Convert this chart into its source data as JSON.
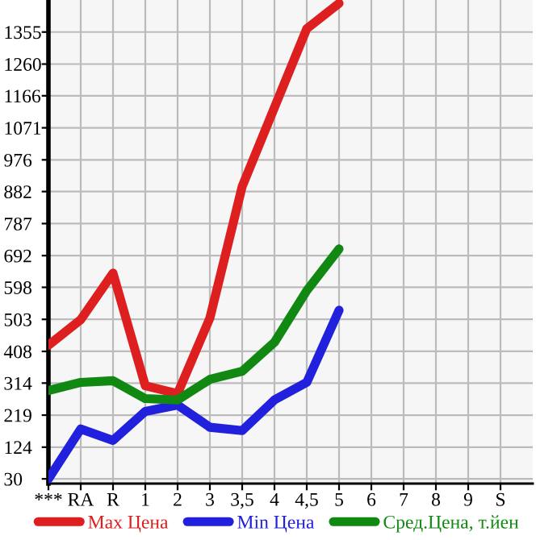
{
  "chart_data": {
    "type": "line",
    "categories": [
      "***",
      "RA",
      "R",
      "1",
      "2",
      "3",
      "3,5",
      "4",
      "4,5",
      "5",
      "6",
      "7",
      "8",
      "9",
      "S"
    ],
    "series": [
      {
        "name": "Max Цена",
        "color": "#dd1f1f",
        "values": [
          426,
          502,
          640,
          306,
          283,
          507,
          897,
          1131,
          1365,
          1440,
          null,
          null,
          null,
          null,
          null
        ]
      },
      {
        "name": "Min Цена",
        "color": "#2020dd",
        "values": [
          30,
          178,
          144,
          230,
          249,
          183,
          173,
          264,
          316,
          530,
          null,
          null,
          null,
          null,
          null
        ]
      },
      {
        "name": "Сред.Цена, т.йен",
        "color": "#118811",
        "values": [
          292,
          316,
          321,
          268,
          264,
          325,
          349,
          435,
          588,
          712,
          null,
          null,
          null,
          null,
          null
        ]
      }
    ],
    "ylim": [
      16,
      1450
    ],
    "yticks": [
      30,
      124,
      219,
      314,
      408,
      503,
      598,
      692,
      787,
      882,
      976,
      1071,
      1166,
      1260,
      1355
    ],
    "grid": true,
    "legend": "bottom",
    "marker": "none",
    "line_style": "solid"
  }
}
